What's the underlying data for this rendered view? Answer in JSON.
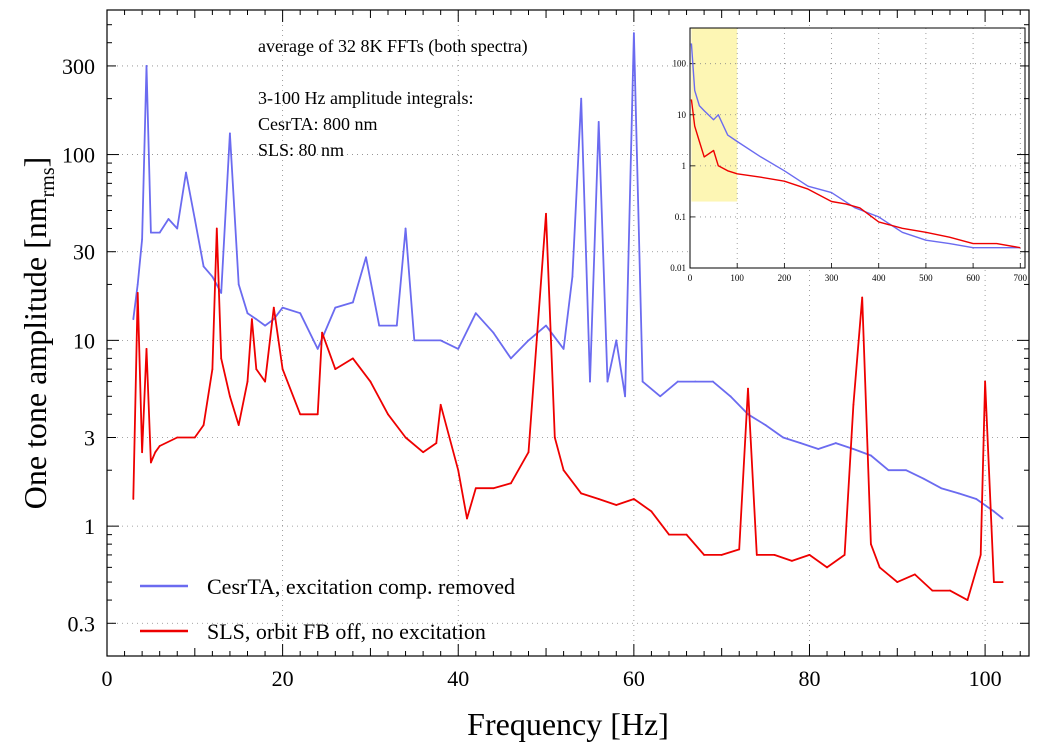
{
  "chart_data": {
    "type": "line",
    "xlabel": "Frequency  [Hz]",
    "ylabel_main": "One tone amplitude  [nm",
    "ylabel_sub": "rms",
    "ylabel_close": "]",
    "xlim": [
      0,
      105
    ],
    "ylim": [
      0.2,
      600
    ],
    "yscale": "log",
    "x_ticks": [
      0,
      20,
      40,
      60,
      80,
      100
    ],
    "y_ticks": [
      0.3,
      1,
      3,
      10,
      30,
      100,
      300
    ],
    "grid": true,
    "annotations": [
      "average of 32 8K FFTs (both spectra)",
      "3-100 Hz amplitude integrals:",
      "CesrTA:  800 nm",
      "SLS:  80 nm"
    ],
    "legend_position": "bottom-left",
    "series": [
      {
        "name": "CesrTA, excitation comp. removed",
        "color": "#6b6bf0",
        "x": [
          3,
          3.5,
          4,
          4.5,
          5,
          6,
          7,
          8,
          9,
          10,
          11,
          12,
          13,
          14,
          15,
          16,
          17,
          18,
          19,
          20,
          22,
          24,
          26,
          28,
          29.5,
          31,
          33,
          34,
          35,
          38,
          40,
          42,
          44,
          46,
          48,
          50,
          52,
          53,
          54,
          55,
          56,
          57,
          58,
          59,
          60,
          61,
          63,
          65,
          67,
          69,
          71,
          73,
          75,
          77,
          79,
          81,
          83,
          85,
          87,
          89,
          91,
          93,
          95,
          97,
          99,
          101,
          102
        ],
        "y": [
          13,
          20,
          35,
          300,
          38,
          38,
          45,
          40,
          80,
          45,
          25,
          22,
          18,
          130,
          20,
          14,
          13,
          12,
          13,
          15,
          14,
          9,
          15,
          16,
          28,
          12,
          12,
          40,
          10,
          10,
          9,
          14,
          11,
          8,
          10,
          12,
          9,
          22,
          200,
          6,
          150,
          6,
          10,
          5,
          450,
          6,
          5,
          6,
          6,
          6,
          5,
          4,
          3.5,
          3,
          2.8,
          2.6,
          2.8,
          2.6,
          2.4,
          2,
          2,
          1.8,
          1.6,
          1.5,
          1.4,
          1.2,
          1.1
        ]
      },
      {
        "name": "SLS, orbit FB off, no excitation",
        "color": "#ee0000",
        "x": [
          3,
          3.5,
          4,
          4.5,
          5,
          5.5,
          6,
          8,
          10,
          11,
          12,
          12.5,
          13,
          14,
          15,
          16,
          16.5,
          17,
          18,
          19,
          20,
          22,
          24,
          24.5,
          26,
          28,
          30,
          32,
          34,
          36,
          37.5,
          38,
          40,
          41,
          42,
          44,
          46,
          48,
          50,
          51,
          52,
          54,
          56,
          58,
          60,
          62,
          64,
          66,
          68,
          70,
          72,
          73,
          74,
          76,
          78,
          80,
          82,
          84,
          85,
          86,
          87,
          88,
          90,
          92,
          94,
          96,
          98,
          99.5,
          100,
          101,
          102
        ],
        "y": [
          1.4,
          18,
          2.5,
          9,
          2.2,
          2.5,
          2.7,
          3,
          3,
          3.5,
          7,
          40,
          8,
          5,
          3.5,
          6,
          13,
          7,
          6,
          15,
          7,
          4,
          4,
          11,
          7,
          8,
          6,
          4,
          3,
          2.5,
          2.8,
          4.5,
          2,
          1.1,
          1.6,
          1.6,
          1.7,
          2.5,
          48,
          3,
          2,
          1.5,
          1.4,
          1.3,
          1.4,
          1.2,
          0.9,
          0.9,
          0.7,
          0.7,
          0.75,
          5.5,
          0.7,
          0.7,
          0.65,
          0.7,
          0.6,
          0.7,
          4.5,
          17,
          0.8,
          0.6,
          0.5,
          0.55,
          0.45,
          0.45,
          0.4,
          0.7,
          6,
          0.5,
          0.5
        ]
      }
    ],
    "inset": {
      "xlim": [
        0,
        710
      ],
      "ylim": [
        0.01,
        500
      ],
      "yscale": "log",
      "x_ticks": [
        0,
        100,
        200,
        300,
        400,
        500,
        600,
        700
      ],
      "y_ticks": [
        0.01,
        0.1,
        1,
        10,
        100
      ],
      "highlight_x": [
        3,
        100
      ],
      "highlight_y": [
        0.2,
        500
      ],
      "highlight_color": "#fdf6b4",
      "series": [
        {
          "color": "#6b6bf0",
          "x": [
            3,
            10,
            20,
            30,
            50,
            60,
            80,
            100,
            150,
            200,
            250,
            300,
            350,
            400,
            450,
            500,
            550,
            600,
            650,
            700
          ],
          "y": [
            250,
            30,
            15,
            12,
            8,
            10,
            4,
            3,
            1.5,
            0.8,
            0.4,
            0.3,
            0.15,
            0.1,
            0.05,
            0.035,
            0.03,
            0.025,
            0.025,
            0.025
          ]
        },
        {
          "color": "#ee0000",
          "x": [
            3,
            10,
            20,
            30,
            50,
            60,
            80,
            100,
            150,
            200,
            250,
            300,
            330,
            360,
            400,
            450,
            500,
            550,
            600,
            650,
            700
          ],
          "y": [
            20,
            6,
            3,
            1.5,
            2,
            1,
            0.8,
            0.7,
            0.6,
            0.5,
            0.35,
            0.2,
            0.18,
            0.15,
            0.08,
            0.06,
            0.05,
            0.04,
            0.03,
            0.03,
            0.025
          ]
        }
      ]
    }
  }
}
